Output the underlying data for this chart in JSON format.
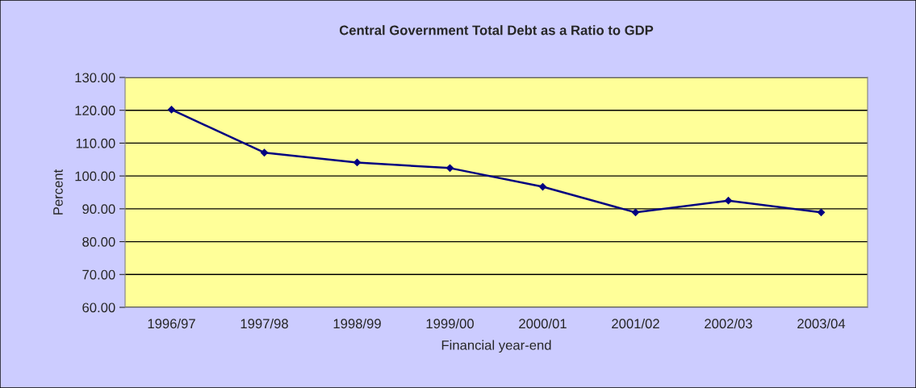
{
  "chart_data": {
    "type": "line",
    "title": "Central Government Total Debt as a Ratio to GDP",
    "xlabel": "Financial year-end",
    "ylabel": "Percent",
    "categories": [
      "1996/97",
      "1997/98",
      "1998/99",
      "1999/00",
      "2000/01",
      "2001/02",
      "2002/03",
      "2003/04"
    ],
    "series": [
      {
        "color": "#000080",
        "values": [
          120.2,
          107.1,
          104.1,
          102.4,
          96.7,
          88.9,
          92.5,
          88.9
        ]
      }
    ],
    "ylim": [
      60,
      130
    ],
    "yticks": [
      {
        "value": 60,
        "label": "60.00"
      },
      {
        "value": 70,
        "label": "70.00"
      },
      {
        "value": 80,
        "label": "80.00"
      },
      {
        "value": 90,
        "label": "90.00"
      },
      {
        "value": 100,
        "label": "100.00"
      },
      {
        "value": 110,
        "label": "110.00"
      },
      {
        "value": 120,
        "label": "120.00"
      },
      {
        "value": 130,
        "label": "130.00"
      }
    ],
    "grid": "y",
    "legend": false,
    "marker": "diamond",
    "line_style": "solid"
  }
}
